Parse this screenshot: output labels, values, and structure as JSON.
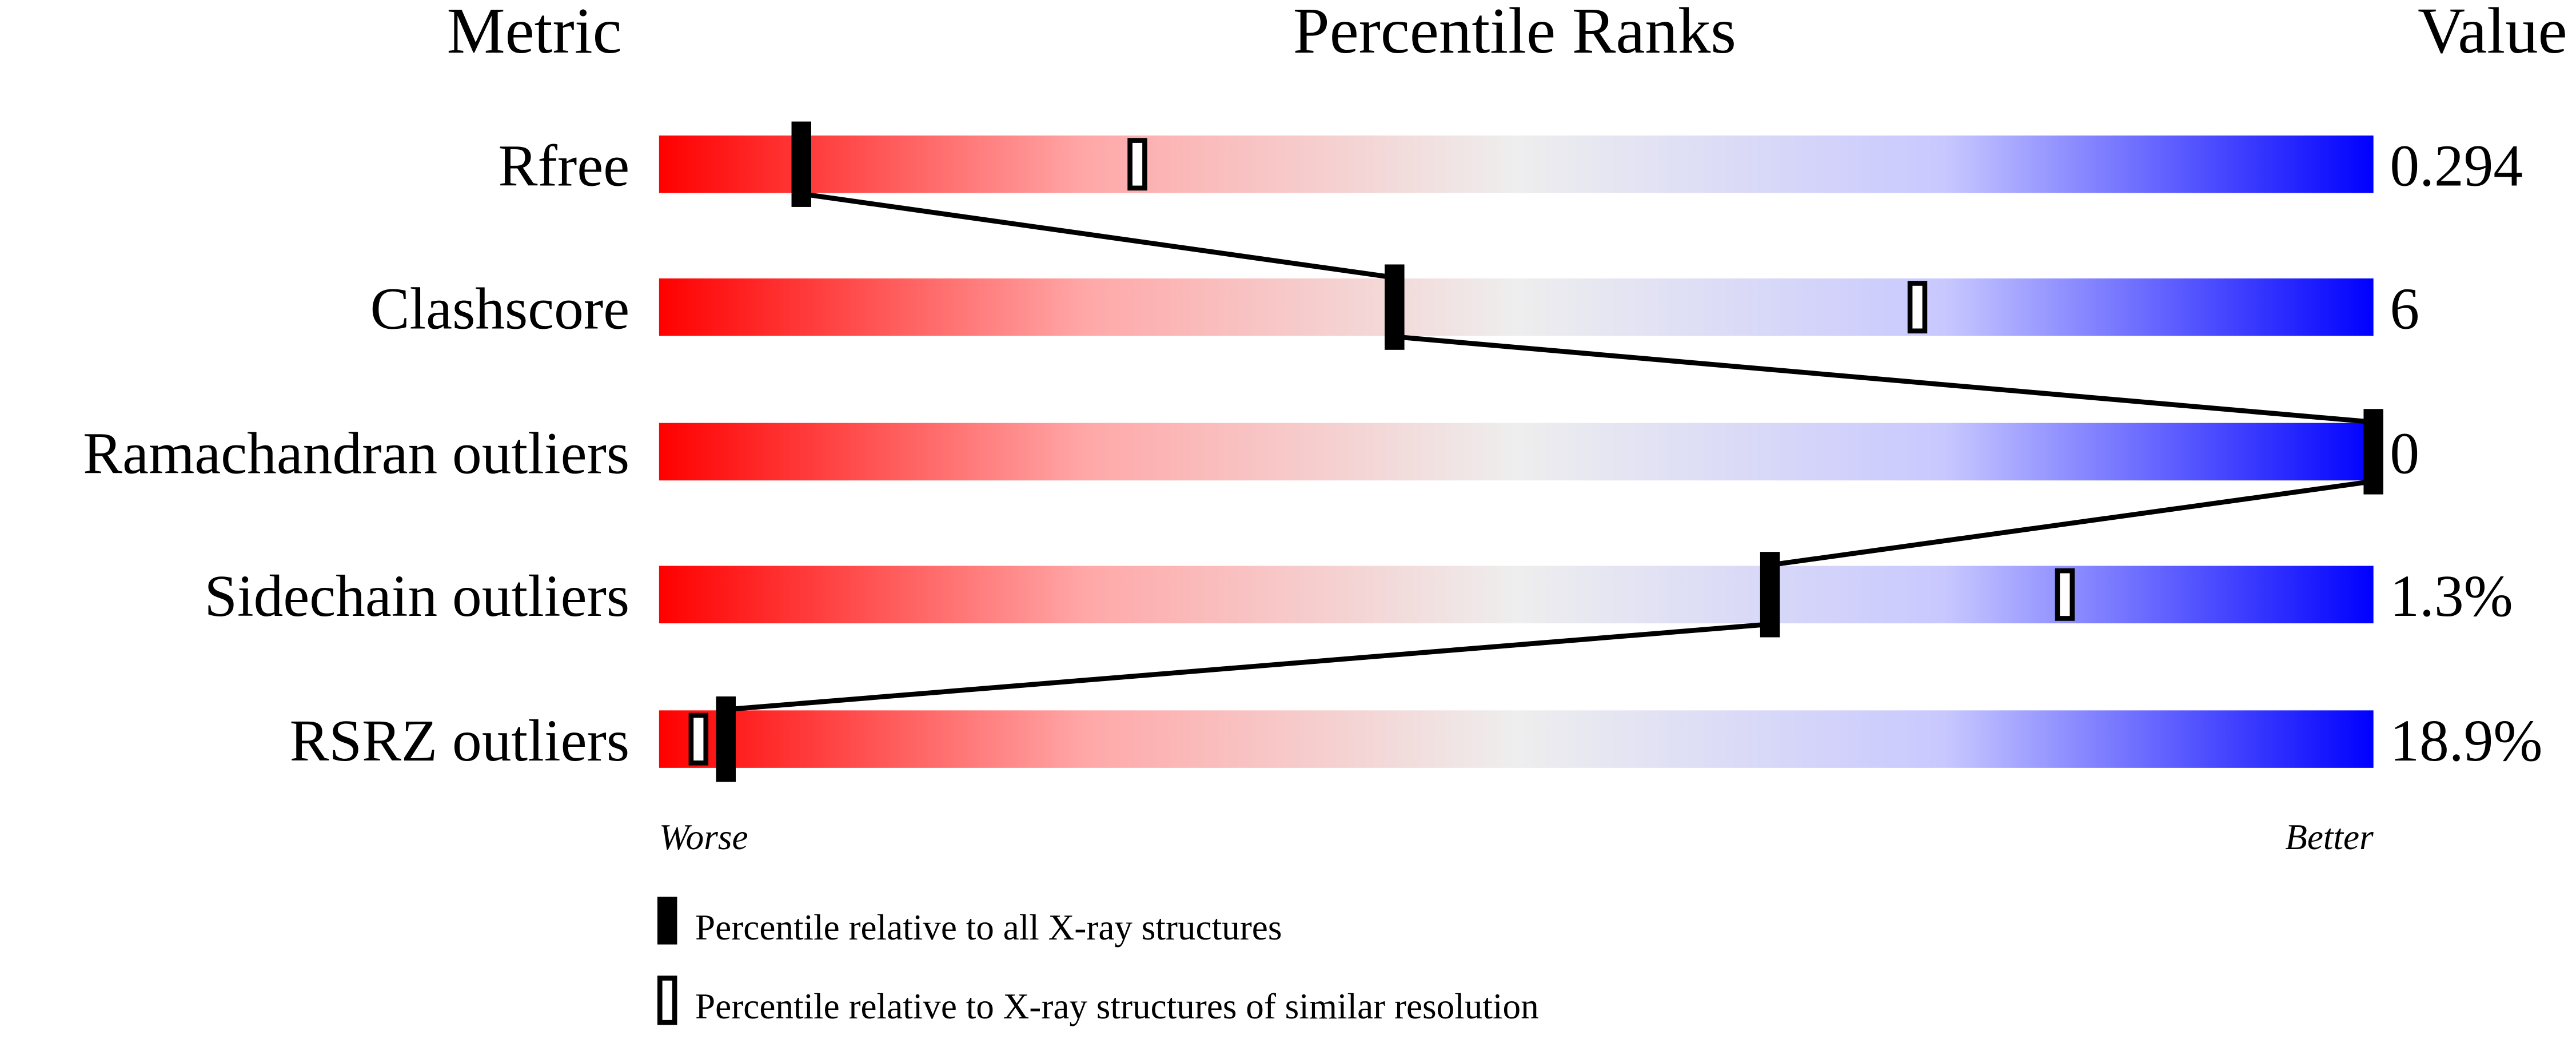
{
  "chart_data": {
    "type": "percentile-slider",
    "headers": {
      "metric": "Metric",
      "ranks": "Percentile Ranks",
      "value": "Value"
    },
    "xlim": [
      0,
      100
    ],
    "axis_labels": {
      "left": "Worse",
      "right": "Better"
    },
    "gradient_colors": [
      "#ff0000",
      "#eeeeee",
      "#0000ff"
    ],
    "rows": [
      {
        "metric": "Rfree",
        "value": "0.294",
        "percentile_all": 8.3,
        "percentile_similar": 27.9
      },
      {
        "metric": "Clashscore",
        "value": "6",
        "percentile_all": 42.9,
        "percentile_similar": 73.4
      },
      {
        "metric": "Ramachandran outliers",
        "value": "0",
        "percentile_all": 100,
        "percentile_similar": 100
      },
      {
        "metric": "Sidechain outliers",
        "value": "1.3%",
        "percentile_all": 64.8,
        "percentile_similar": 82.0
      },
      {
        "metric": "RSRZ outliers",
        "value": "18.9%",
        "percentile_all": 3.9,
        "percentile_similar": 2.3
      }
    ],
    "legend": [
      {
        "marker": "filled",
        "label": "Percentile relative to all X-ray structures"
      },
      {
        "marker": "open",
        "label": "Percentile relative to X-ray structures of similar resolution"
      }
    ]
  }
}
